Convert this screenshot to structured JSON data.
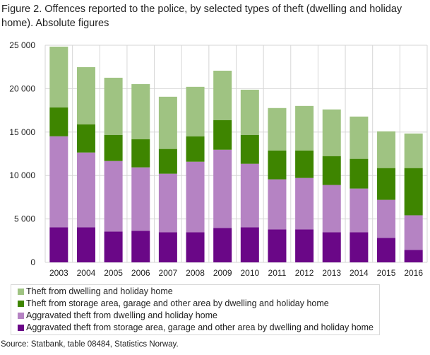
{
  "title": "Figure 2. Offences reported to the police, by selected types of theft (dwelling and holiday home). Absolute figures",
  "source": "Source: Statbank, table 08484, Statistics Norway.",
  "chart_data": {
    "type": "bar",
    "stacked": true,
    "title": "Figure 2. Offences reported to the police, by selected types of theft (dwelling and holiday home). Absolute figures",
    "xlabel": "",
    "ylabel": "",
    "ylim": [
      0,
      25000
    ],
    "yticks": [
      0,
      5000,
      10000,
      15000,
      20000,
      25000
    ],
    "ytick_labels": [
      "0",
      "5 000",
      "10 000",
      "15 000",
      "20 000",
      "25 000"
    ],
    "grid": true,
    "legend_position": "bottom",
    "categories": [
      "2003",
      "2004",
      "2005",
      "2006",
      "2007",
      "2008",
      "2009",
      "2010",
      "2011",
      "2012",
      "2013",
      "2014",
      "2015",
      "2016"
    ],
    "series": [
      {
        "name": "Aggravated theft from storage area, garage and other area by dwelling and holiday home",
        "color": "#6a0787",
        "values": [
          4040,
          4040,
          3550,
          3630,
          3470,
          3470,
          3950,
          4040,
          3790,
          3790,
          3470,
          3470,
          2820,
          1440
        ]
      },
      {
        "name": "Aggravated theft from dwelling and holiday home",
        "color": "#b583c3",
        "values": [
          10480,
          8610,
          8120,
          7310,
          6740,
          8120,
          9020,
          7310,
          5770,
          5930,
          5440,
          5030,
          4380,
          3980
        ]
      },
      {
        "name": "Theft from storage area, garage and other area by dwelling and holiday home",
        "color": "#3e8500",
        "values": [
          3330,
          3250,
          3010,
          3250,
          2850,
          2930,
          3420,
          3330,
          3330,
          3170,
          3330,
          3420,
          3660,
          5440
        ]
      },
      {
        "name": "Theft from dwelling and holiday home",
        "color": "#9fc382",
        "values": [
          6990,
          6580,
          6580,
          6340,
          6010,
          5690,
          5680,
          5200,
          4880,
          5120,
          5370,
          4870,
          4230,
          3980
        ]
      }
    ],
    "legend_order": [
      3,
      2,
      1,
      0
    ]
  }
}
